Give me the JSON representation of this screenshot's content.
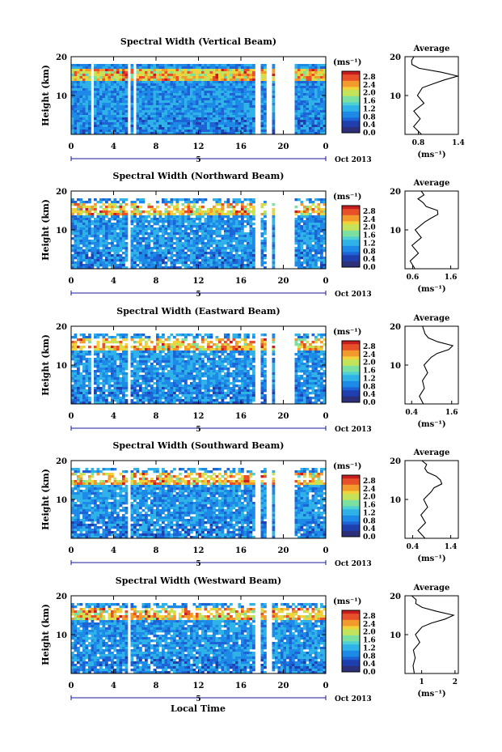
{
  "figure": {
    "xlabel_bottom": "Local Time"
  },
  "chart_data": [
    {
      "type": "heatmap",
      "title": "Spectral Width (Vertical Beam)",
      "ylabel": "Height (km)",
      "xticks": [
        "0",
        "4",
        "8",
        "12",
        "16",
        "20",
        "0"
      ],
      "yticks": [
        "10",
        "20"
      ],
      "date_label": "Oct 2013",
      "date_marker": "5",
      "colorbar": {
        "unit": "(ms⁻¹)",
        "ticks": [
          "0.0",
          "0.4",
          "0.8",
          "1.2",
          "1.6",
          "2.0",
          "2.4",
          "2.8"
        ]
      },
      "gaps_hours": [
        [
          1.8,
          2.0
        ],
        [
          5.3,
          5.6
        ],
        [
          5.8,
          5.95
        ],
        [
          17.3,
          17.6
        ],
        [
          18.3,
          18.7
        ],
        [
          19.2,
          21.0
        ]
      ],
      "profile": {
        "title": "Average",
        "xlabel": "(ms⁻¹)",
        "xticks": [
          "0.8",
          "1.4"
        ],
        "xlim": [
          0.6,
          1.4
        ],
        "ylim": [
          0,
          20
        ],
        "yticks": [
          "10",
          "20"
        ],
        "height_km": [
          0,
          2,
          4,
          6,
          8,
          10,
          12,
          13,
          14,
          15,
          16,
          17,
          18,
          19,
          20
        ],
        "width_ms": [
          0.85,
          0.75,
          0.82,
          0.72,
          0.88,
          0.78,
          0.85,
          1.0,
          1.2,
          1.38,
          1.15,
          0.8,
          0.72,
          0.7,
          0.72
        ]
      }
    },
    {
      "type": "heatmap",
      "title": "Spectral Width (Northward Beam)",
      "ylabel": "Height (km)",
      "xticks": [
        "0",
        "4",
        "8",
        "12",
        "16",
        "20",
        "0"
      ],
      "yticks": [
        "10",
        "20"
      ],
      "date_label": "Oct 2013",
      "date_marker": "5",
      "colorbar": {
        "unit": "(ms⁻¹)",
        "ticks": [
          "0.0",
          "0.4",
          "0.8",
          "1.2",
          "1.6",
          "2.0",
          "2.4",
          "2.8"
        ]
      },
      "gaps_hours": [
        [
          5.3,
          5.6
        ],
        [
          17.3,
          17.6
        ],
        [
          18.3,
          18.7
        ],
        [
          19.2,
          21.0
        ]
      ],
      "profile": {
        "title": "Average",
        "xlabel": "(ms⁻¹)",
        "xticks": [
          "0.6",
          "1.6"
        ],
        "xlim": [
          0.4,
          1.8
        ],
        "ylim": [
          0,
          20
        ],
        "yticks": [
          "10",
          "20"
        ],
        "height_km": [
          0,
          2,
          4,
          6,
          8,
          10,
          12,
          13,
          14,
          15,
          16,
          17,
          18,
          19,
          20
        ],
        "width_ms": [
          0.7,
          0.55,
          0.75,
          0.6,
          0.8,
          0.7,
          0.9,
          1.1,
          1.3,
          1.25,
          1.0,
          0.85,
          0.75,
          0.9,
          0.8
        ]
      }
    },
    {
      "type": "heatmap",
      "title": "Spectral Width (Eastward Beam)",
      "ylabel": "Height (km)",
      "xticks": [
        "0",
        "4",
        "8",
        "12",
        "16",
        "20",
        "0"
      ],
      "yticks": [
        "10",
        "20"
      ],
      "date_label": "Oct 2013",
      "date_marker": "5",
      "colorbar": {
        "unit": "(ms⁻¹)",
        "ticks": [
          "0.0",
          "0.4",
          "0.8",
          "1.2",
          "1.6",
          "2.0",
          "2.4",
          "2.8"
        ]
      },
      "gaps_hours": [
        [
          1.8,
          2.0
        ],
        [
          5.3,
          5.6
        ],
        [
          17.3,
          17.6
        ],
        [
          18.3,
          18.7
        ],
        [
          19.2,
          21.0
        ]
      ],
      "profile": {
        "title": "Average",
        "xlabel": "(ms⁻¹)",
        "xticks": [
          "0.4",
          "1.6"
        ],
        "xlim": [
          0.2,
          1.8
        ],
        "ylim": [
          0,
          20
        ],
        "yticks": [
          "10",
          "20"
        ],
        "height_km": [
          0,
          2,
          4,
          6,
          8,
          10,
          12,
          13,
          14,
          15,
          16,
          17,
          18,
          19,
          20
        ],
        "width_ms": [
          0.75,
          0.6,
          0.8,
          0.7,
          0.85,
          0.75,
          0.95,
          1.2,
          1.5,
          1.65,
          1.2,
          0.9,
          0.8,
          0.75,
          0.7
        ]
      }
    },
    {
      "type": "heatmap",
      "title": "Spectral Width (Southward Beam)",
      "ylabel": "Height (km)",
      "xticks": [
        "0",
        "4",
        "8",
        "12",
        "16",
        "20",
        "0"
      ],
      "yticks": [
        "10",
        "20"
      ],
      "date_label": "Oct 2013",
      "date_marker": "5",
      "colorbar": {
        "unit": "(ms⁻¹)",
        "ticks": [
          "0.0",
          "0.4",
          "0.8",
          "1.2",
          "1.6",
          "2.0",
          "2.4",
          "2.8"
        ]
      },
      "gaps_hours": [
        [
          5.3,
          5.6
        ],
        [
          17.3,
          17.6
        ],
        [
          18.3,
          18.7
        ],
        [
          19.2,
          21.0
        ]
      ],
      "profile": {
        "title": "Average",
        "xlabel": "(ms⁻¹)",
        "xticks": [
          "0.4",
          "1.4"
        ],
        "xlim": [
          0.2,
          1.6
        ],
        "ylim": [
          0,
          20
        ],
        "yticks": [
          "10",
          "20"
        ],
        "height_km": [
          0,
          2,
          4,
          6,
          8,
          10,
          12,
          13,
          14,
          15,
          16,
          17,
          18,
          19,
          20
        ],
        "width_ms": [
          0.7,
          0.55,
          0.72,
          0.6,
          0.8,
          0.7,
          0.9,
          1.0,
          1.2,
          1.15,
          1.0,
          0.8,
          0.7,
          0.75,
          0.65
        ]
      }
    },
    {
      "type": "heatmap",
      "title": "Spectral Width (Westward Beam)",
      "ylabel": "Height (km)",
      "xticks": [
        "0",
        "4",
        "8",
        "12",
        "16",
        "20",
        "0"
      ],
      "yticks": [
        "10",
        "20"
      ],
      "date_label": "Oct 2013",
      "date_marker": "5",
      "colorbar": {
        "unit": "(ms⁻¹)",
        "ticks": [
          "0.0",
          "0.4",
          "0.8",
          "1.2",
          "1.6",
          "2.0",
          "2.4",
          "2.8"
        ]
      },
      "gaps_hours": [
        [
          5.3,
          5.6
        ],
        [
          17.3,
          17.6
        ],
        [
          18.3,
          18.7
        ]
      ],
      "profile": {
        "title": "Average",
        "xlabel": "(ms⁻¹)",
        "xticks": [
          "1",
          "2"
        ],
        "xlim": [
          0.5,
          2.1
        ],
        "ylim": [
          0,
          20
        ],
        "yticks": [
          "10",
          "20"
        ],
        "height_km": [
          0,
          2,
          4,
          6,
          8,
          10,
          12,
          13,
          14,
          15,
          16,
          17,
          18,
          19,
          20
        ],
        "width_ms": [
          0.8,
          0.7,
          0.85,
          0.75,
          0.9,
          0.85,
          1.05,
          1.3,
          1.7,
          1.95,
          1.4,
          1.0,
          0.85,
          0.8,
          0.75
        ]
      }
    }
  ]
}
